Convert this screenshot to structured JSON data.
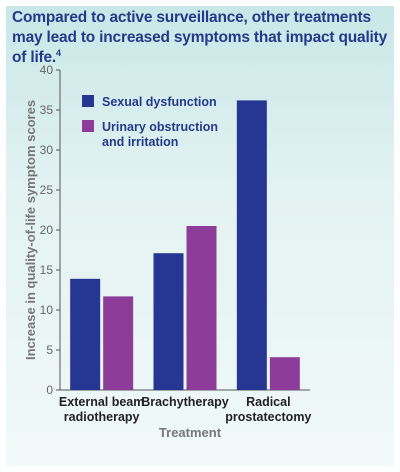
{
  "title": {
    "text": "Compared to active surveillance, other treatments may lead to increased symptoms that impact quality of life.",
    "footnote": "4"
  },
  "colors": {
    "background": "#d3ecec",
    "title": "#233a8a",
    "series": [
      "#263693",
      "#8d3c99"
    ]
  },
  "chart_data": {
    "type": "bar",
    "categories": [
      [
        "External beam",
        "radiotherapy"
      ],
      [
        "Brachytherapy"
      ],
      [
        "Radical",
        "prostatectomy"
      ]
    ],
    "series": [
      {
        "name": "Sexual dysfunction",
        "values": [
          13.9,
          17.1,
          36.2
        ],
        "color": "#263693"
      },
      {
        "name": "Urinary obstruction and irritation",
        "label_lines": [
          "Urinary obstruction",
          "and irritation"
        ],
        "values": [
          11.7,
          20.5,
          4.1
        ],
        "color": "#8d3c99"
      }
    ],
    "ylim": [
      0,
      40
    ],
    "yticks": [
      0,
      5,
      10,
      15,
      20,
      25,
      30,
      35,
      40
    ],
    "ylabel": "Increase in quality-of-life symptom scores",
    "xlabel": "Treatment",
    "legend_position": "top-left",
    "grid": false
  }
}
